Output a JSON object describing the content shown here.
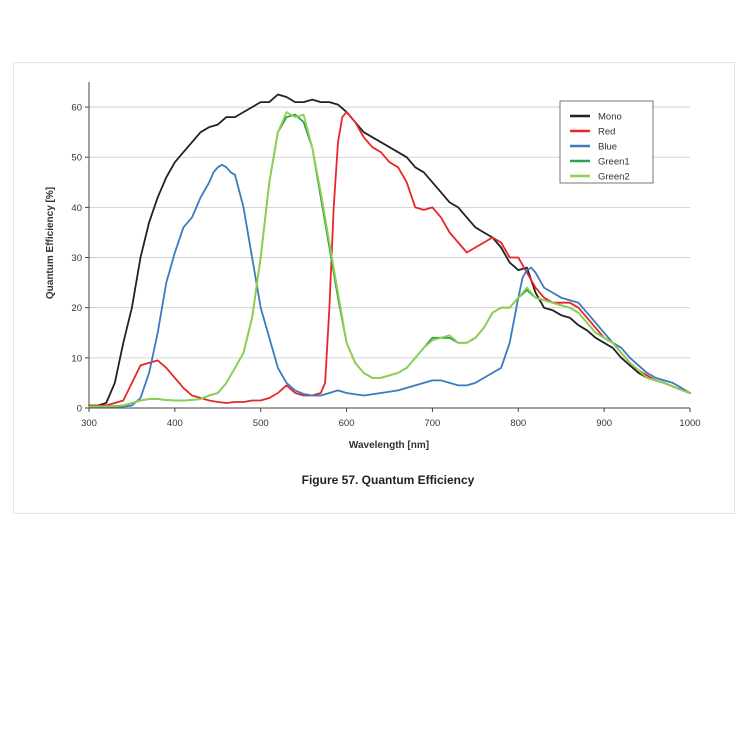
{
  "figure": {
    "caption": "Figure 57. Quantum Efficiency"
  },
  "chart_data": {
    "type": "line",
    "title": "",
    "xlabel": "Wavelength [nm]",
    "ylabel": "Quantum Efficiency [%]",
    "xlim": [
      300,
      1000
    ],
    "ylim": [
      0,
      65
    ],
    "xticks": [
      300,
      400,
      500,
      600,
      700,
      800,
      900,
      1000
    ],
    "yticks": [
      0,
      10,
      20,
      30,
      40,
      50,
      60
    ],
    "grid": "horizontal",
    "legend_position": "top-right",
    "series": [
      {
        "name": "Mono",
        "color": "#222222",
        "x": [
          300,
          310,
          320,
          330,
          340,
          350,
          360,
          370,
          380,
          390,
          400,
          410,
          420,
          430,
          440,
          450,
          460,
          470,
          480,
          490,
          500,
          510,
          520,
          530,
          540,
          550,
          560,
          570,
          580,
          590,
          600,
          610,
          620,
          630,
          640,
          650,
          660,
          670,
          680,
          690,
          700,
          710,
          720,
          730,
          740,
          750,
          760,
          770,
          780,
          790,
          800,
          810,
          820,
          830,
          840,
          850,
          860,
          870,
          880,
          890,
          900,
          910,
          920,
          930,
          940,
          950,
          960,
          970,
          980,
          990,
          1000
        ],
        "y": [
          0.5,
          0.5,
          1,
          5,
          13,
          20,
          30,
          37,
          42,
          46,
          49,
          51,
          53,
          55,
          56,
          56.5,
          58,
          58,
          59,
          60,
          61,
          61,
          62.5,
          62,
          61,
          61,
          61.5,
          61,
          61,
          60.5,
          59,
          57,
          55,
          54,
          53,
          52,
          51,
          50,
          48,
          47,
          45,
          43,
          41,
          40,
          38,
          36,
          35,
          34,
          32,
          29,
          27.5,
          28,
          23,
          20,
          19.5,
          18.5,
          18,
          16.5,
          15.5,
          14,
          13,
          12,
          10,
          8.5,
          7,
          6,
          5.5,
          5,
          4.3,
          3.6,
          3
        ]
      },
      {
        "name": "Red",
        "color": "#e8262a",
        "x": [
          300,
          320,
          340,
          350,
          360,
          370,
          380,
          390,
          400,
          410,
          420,
          430,
          440,
          450,
          460,
          470,
          480,
          490,
          500,
          510,
          520,
          530,
          540,
          550,
          560,
          570,
          575,
          580,
          585,
          590,
          595,
          600,
          610,
          620,
          630,
          640,
          650,
          660,
          670,
          680,
          690,
          700,
          710,
          720,
          730,
          740,
          750,
          760,
          770,
          780,
          790,
          800,
          810,
          820,
          830,
          840,
          850,
          860,
          870,
          880,
          890,
          900,
          910,
          920,
          930,
          940,
          950,
          960,
          970,
          980,
          990,
          1000
        ],
        "y": [
          0.5,
          0.5,
          1.5,
          5,
          8.5,
          9,
          9.5,
          8,
          6,
          4,
          2.5,
          2,
          1.5,
          1.2,
          1,
          1.2,
          1.2,
          1.5,
          1.5,
          2,
          3,
          4.5,
          3,
          2.5,
          2.5,
          3,
          5,
          20,
          40,
          53,
          58,
          59,
          57,
          54,
          52,
          51,
          49,
          48,
          45,
          40,
          39.5,
          40,
          38,
          35,
          33,
          31,
          32,
          33,
          34,
          33,
          30,
          30,
          27,
          24,
          22,
          21,
          21,
          21,
          20,
          18,
          16,
          14,
          13,
          11,
          9,
          7.5,
          6.5,
          5.5,
          5,
          4.3,
          3.6,
          3
        ]
      },
      {
        "name": "Blue",
        "color": "#3a7ac0",
        "x": [
          300,
          320,
          340,
          350,
          360,
          370,
          380,
          390,
          400,
          410,
          420,
          430,
          440,
          445,
          450,
          455,
          460,
          465,
          470,
          480,
          490,
          500,
          510,
          520,
          530,
          540,
          550,
          560,
          570,
          580,
          590,
          600,
          620,
          640,
          660,
          670,
          680,
          690,
          700,
          710,
          720,
          730,
          740,
          750,
          760,
          770,
          780,
          790,
          800,
          805,
          810,
          815,
          820,
          830,
          840,
          850,
          860,
          870,
          880,
          890,
          900,
          910,
          920,
          930,
          940,
          950,
          960,
          970,
          980,
          990,
          1000
        ],
        "y": [
          0.3,
          0.3,
          0.3,
          0.5,
          2,
          7,
          15,
          25,
          31,
          36,
          38,
          42,
          45,
          47,
          48,
          48.5,
          48,
          47,
          46.5,
          40,
          30,
          20,
          14,
          8,
          5,
          3.5,
          2.8,
          2.5,
          2.5,
          3,
          3.5,
          3,
          2.5,
          3,
          3.5,
          4,
          4.5,
          5,
          5.5,
          5.5,
          5,
          4.5,
          4.5,
          5,
          6,
          7,
          8,
          13,
          22,
          26,
          27.5,
          28,
          27,
          24,
          23,
          22,
          21.5,
          21,
          19,
          17,
          15,
          13,
          12,
          10,
          8.5,
          7,
          6,
          5.5,
          5,
          4,
          3
        ]
      },
      {
        "name": "Green1",
        "color": "#2ca24c",
        "x": [
          300,
          320,
          340,
          350,
          360,
          370,
          380,
          390,
          400,
          410,
          420,
          430,
          440,
          450,
          460,
          470,
          480,
          490,
          500,
          510,
          520,
          530,
          540,
          550,
          560,
          570,
          580,
          590,
          600,
          610,
          620,
          630,
          640,
          650,
          660,
          670,
          680,
          690,
          700,
          710,
          720,
          730,
          740,
          750,
          760,
          770,
          780,
          790,
          800,
          810,
          820,
          830,
          840,
          850,
          860,
          870,
          880,
          890,
          900,
          910,
          920,
          930,
          940,
          950,
          960,
          970,
          980,
          990,
          1000
        ],
        "y": [
          0.3,
          0.3,
          0.5,
          1,
          1.5,
          1.8,
          1.8,
          1.6,
          1.5,
          1.5,
          1.6,
          1.8,
          2.5,
          3,
          5,
          8,
          11,
          18,
          30,
          45,
          55,
          58,
          58.5,
          57,
          52,
          42,
          32,
          22,
          13,
          9,
          7,
          6,
          6,
          6.5,
          7,
          8,
          10,
          12,
          14,
          14,
          14,
          13,
          13,
          14,
          16,
          19,
          20,
          20,
          22,
          23.5,
          22,
          21.5,
          21,
          20.5,
          20,
          19,
          17,
          15,
          14,
          13,
          11,
          9,
          7.5,
          6,
          5.5,
          5,
          4.3,
          3.6,
          3
        ]
      },
      {
        "name": "Green2",
        "color": "#8fd04f",
        "x": [
          300,
          320,
          340,
          350,
          360,
          370,
          380,
          390,
          400,
          410,
          420,
          430,
          440,
          450,
          460,
          470,
          480,
          490,
          500,
          510,
          520,
          530,
          540,
          550,
          560,
          570,
          580,
          590,
          600,
          610,
          620,
          630,
          640,
          650,
          660,
          670,
          680,
          690,
          700,
          710,
          720,
          730,
          740,
          750,
          760,
          770,
          780,
          790,
          800,
          810,
          820,
          830,
          840,
          850,
          860,
          870,
          880,
          890,
          900,
          910,
          920,
          930,
          940,
          950,
          960,
          970,
          980,
          990,
          1000
        ],
        "y": [
          0.3,
          0.3,
          0.5,
          1,
          1.5,
          1.8,
          1.8,
          1.6,
          1.5,
          1.5,
          1.6,
          1.8,
          2.5,
          3,
          5,
          8,
          11,
          18,
          30,
          45,
          55,
          59,
          58,
          58.5,
          52,
          43,
          33,
          23,
          13,
          9,
          7,
          6,
          6,
          6.5,
          7,
          8,
          10,
          12,
          13.5,
          14,
          14.5,
          13,
          13,
          14,
          16,
          19,
          20,
          20,
          22,
          24,
          22,
          21.5,
          21,
          20.5,
          20,
          19,
          17,
          15,
          14,
          13,
          11,
          9,
          7.5,
          6,
          5.5,
          5,
          4.3,
          3.6,
          3
        ]
      }
    ]
  }
}
